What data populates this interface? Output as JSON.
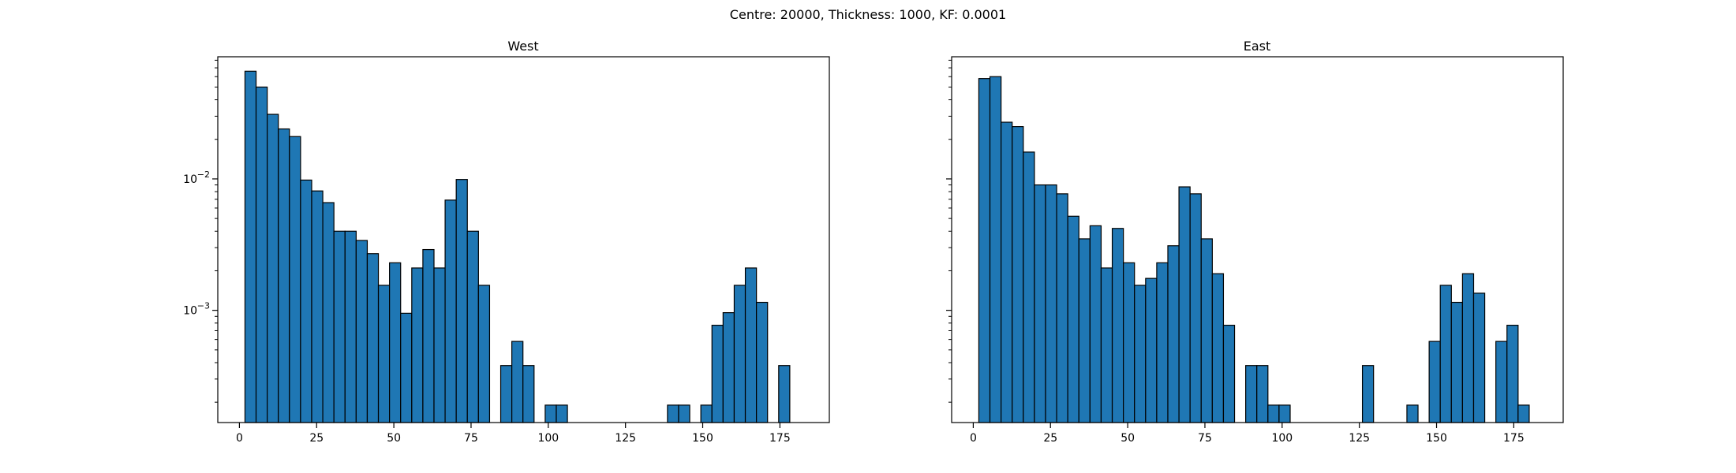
{
  "figure": {
    "suptitle": "Centre: 20000, Thickness: 1000, KF: 0.0001"
  },
  "chart_data": [
    {
      "type": "bar",
      "title": "West",
      "xlabel": "",
      "ylabel": "",
      "yscale": "log",
      "xlim": [
        -7,
        191
      ],
      "ylim": [
        0.00014,
        0.085
      ],
      "x_ticks": [
        0,
        25,
        50,
        75,
        100,
        125,
        150,
        175
      ],
      "y_ticks": [
        {
          "value": 0.01,
          "label": "10",
          "exp": "−2"
        },
        {
          "value": 0.001,
          "label": "10",
          "exp": "−3"
        }
      ],
      "bin_width": 3.6,
      "bar_color": "#1f77b4",
      "bins": [
        {
          "left": 1.8,
          "value": 0.066
        },
        {
          "left": 5.4,
          "value": 0.05
        },
        {
          "left": 9.0,
          "value": 0.031
        },
        {
          "left": 12.6,
          "value": 0.024
        },
        {
          "left": 16.2,
          "value": 0.021
        },
        {
          "left": 19.8,
          "value": 0.0098
        },
        {
          "left": 23.4,
          "value": 0.0081
        },
        {
          "left": 27.0,
          "value": 0.0066
        },
        {
          "left": 30.6,
          "value": 0.004
        },
        {
          "left": 34.2,
          "value": 0.004
        },
        {
          "left": 37.8,
          "value": 0.0034
        },
        {
          "left": 41.4,
          "value": 0.0027
        },
        {
          "left": 45.0,
          "value": 0.00155
        },
        {
          "left": 48.6,
          "value": 0.0023
        },
        {
          "left": 52.2,
          "value": 0.00095
        },
        {
          "left": 55.8,
          "value": 0.0021
        },
        {
          "left": 59.4,
          "value": 0.0029
        },
        {
          "left": 63.0,
          "value": 0.0021
        },
        {
          "left": 66.6,
          "value": 0.0069
        },
        {
          "left": 70.2,
          "value": 0.0099
        },
        {
          "left": 73.8,
          "value": 0.004
        },
        {
          "left": 77.4,
          "value": 0.00155
        },
        {
          "left": 84.6,
          "value": 0.00038
        },
        {
          "left": 88.2,
          "value": 0.00058
        },
        {
          "left": 91.8,
          "value": 0.00038
        },
        {
          "left": 99.0,
          "value": 0.00019
        },
        {
          "left": 102.6,
          "value": 0.00019
        },
        {
          "left": 138.6,
          "value": 0.00019
        },
        {
          "left": 142.2,
          "value": 0.00019
        },
        {
          "left": 149.4,
          "value": 0.00019
        },
        {
          "left": 153.0,
          "value": 0.00077
        },
        {
          "left": 156.6,
          "value": 0.00096
        },
        {
          "left": 160.2,
          "value": 0.00155
        },
        {
          "left": 163.8,
          "value": 0.0021
        },
        {
          "left": 167.4,
          "value": 0.00115
        },
        {
          "left": 174.6,
          "value": 0.00038
        }
      ]
    },
    {
      "type": "bar",
      "title": "East",
      "xlabel": "",
      "ylabel": "",
      "yscale": "log",
      "xlim": [
        -7,
        191
      ],
      "ylim": [
        0.00014,
        0.085
      ],
      "x_ticks": [
        0,
        25,
        50,
        75,
        100,
        125,
        150,
        175
      ],
      "y_ticks": [
        {
          "value": 0.01,
          "label": "",
          "exp": ""
        },
        {
          "value": 0.001,
          "label": "",
          "exp": ""
        }
      ],
      "bin_width": 3.6,
      "bar_color": "#1f77b4",
      "bins": [
        {
          "left": 1.8,
          "value": 0.058
        },
        {
          "left": 5.4,
          "value": 0.06
        },
        {
          "left": 9.0,
          "value": 0.027
        },
        {
          "left": 12.6,
          "value": 0.025
        },
        {
          "left": 16.2,
          "value": 0.016
        },
        {
          "left": 19.8,
          "value": 0.009
        },
        {
          "left": 23.4,
          "value": 0.009
        },
        {
          "left": 27.0,
          "value": 0.0077
        },
        {
          "left": 30.6,
          "value": 0.0052
        },
        {
          "left": 34.2,
          "value": 0.0035
        },
        {
          "left": 37.8,
          "value": 0.0044
        },
        {
          "left": 41.4,
          "value": 0.0021
        },
        {
          "left": 45.0,
          "value": 0.0042
        },
        {
          "left": 48.6,
          "value": 0.0023
        },
        {
          "left": 52.2,
          "value": 0.00155
        },
        {
          "left": 55.8,
          "value": 0.00175
        },
        {
          "left": 59.4,
          "value": 0.0023
        },
        {
          "left": 63.0,
          "value": 0.0031
        },
        {
          "left": 66.6,
          "value": 0.0087
        },
        {
          "left": 70.2,
          "value": 0.0077
        },
        {
          "left": 73.8,
          "value": 0.0035
        },
        {
          "left": 77.4,
          "value": 0.0019
        },
        {
          "left": 81.0,
          "value": 0.00077
        },
        {
          "left": 88.2,
          "value": 0.00038
        },
        {
          "left": 91.8,
          "value": 0.00038
        },
        {
          "left": 95.4,
          "value": 0.00019
        },
        {
          "left": 99.0,
          "value": 0.00019
        },
        {
          "left": 126.0,
          "value": 0.00038
        },
        {
          "left": 140.4,
          "value": 0.00019
        },
        {
          "left": 147.6,
          "value": 0.00058
        },
        {
          "left": 151.2,
          "value": 0.00155
        },
        {
          "left": 154.8,
          "value": 0.00115
        },
        {
          "left": 158.4,
          "value": 0.0019
        },
        {
          "left": 162.0,
          "value": 0.00135
        },
        {
          "left": 169.2,
          "value": 0.00058
        },
        {
          "left": 172.8,
          "value": 0.00077
        },
        {
          "left": 176.4,
          "value": 0.00019
        }
      ]
    }
  ]
}
